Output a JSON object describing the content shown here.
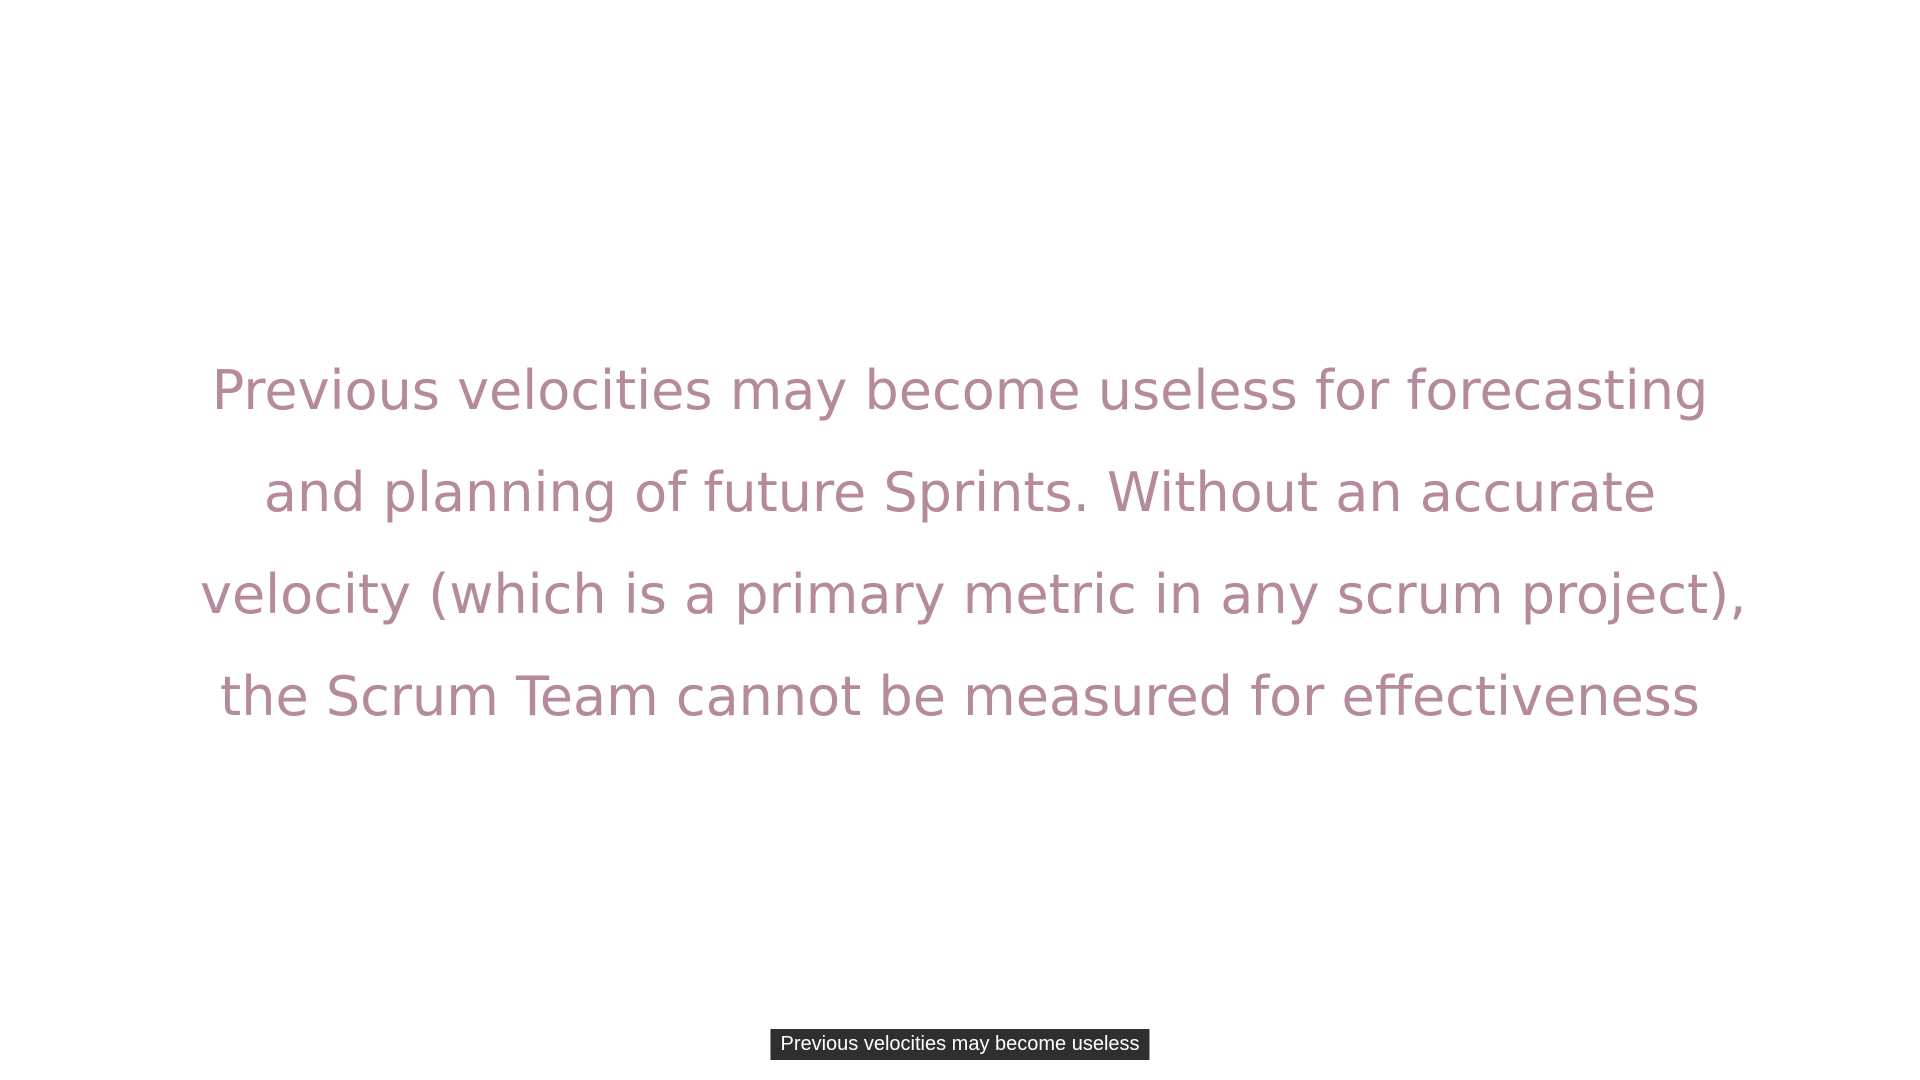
{
  "slide": {
    "lines": [
      "Previous velocities may become useless for forecasting",
      "and planning of future Sprints. Without an accurate",
      "velocity (which is a primary metric in any scrum project),",
      "the Scrum Team cannot be measured for effectiveness"
    ],
    "text_color": "#b48a9c",
    "background_color": "#ffffff"
  },
  "caption": {
    "text": "Previous velocities may become useless",
    "background_color": "#2f2f2f",
    "text_color": "#ffffff"
  }
}
